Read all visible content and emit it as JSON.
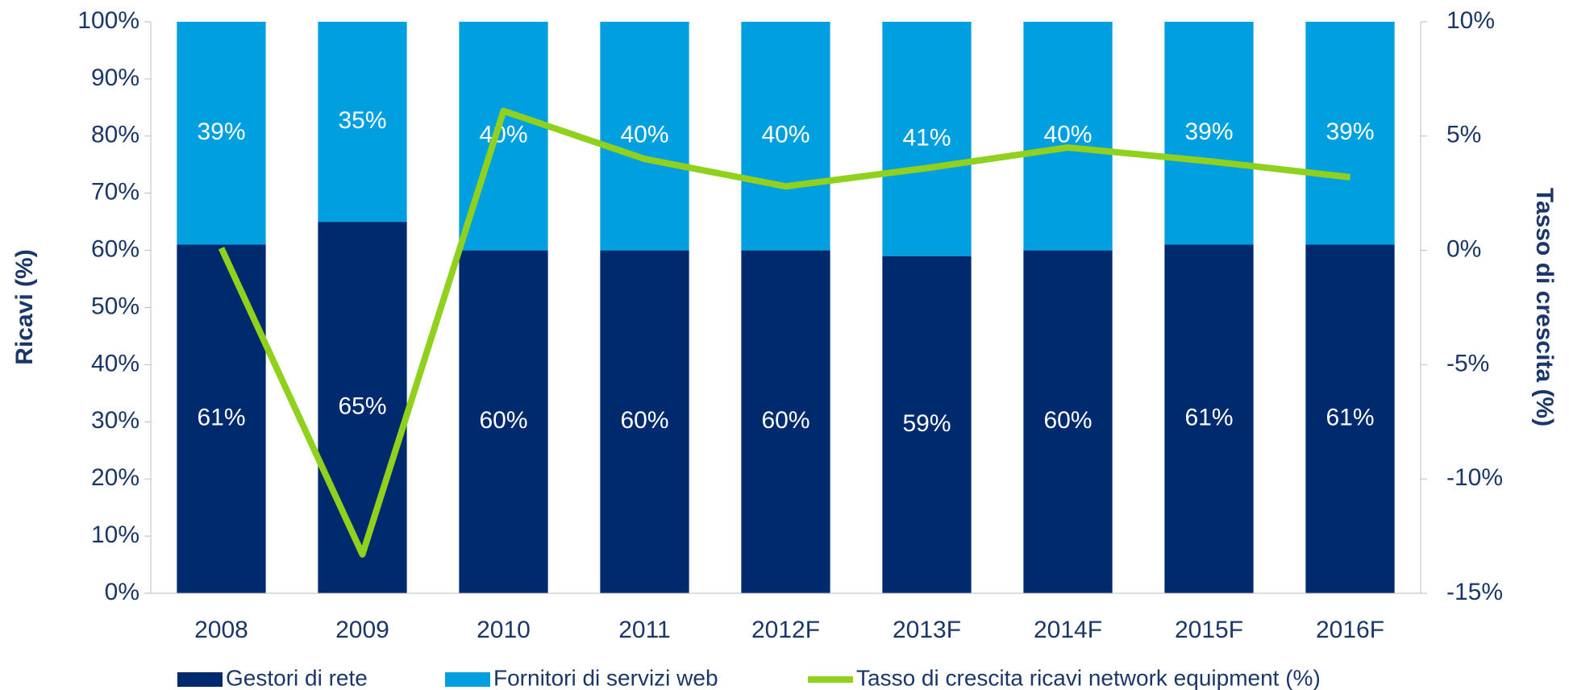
{
  "chart_data": {
    "type": "bar",
    "stacked": true,
    "categories": [
      "2008",
      "2009",
      "2010",
      "2011",
      "2012F",
      "2013F",
      "2014F",
      "2015F",
      "2016F"
    ],
    "series": [
      {
        "name": "Gestori di rete",
        "color": "#002a6e",
        "values": [
          61,
          65,
          60,
          60,
          60,
          59,
          60,
          61,
          61
        ],
        "value_labels": [
          "61%",
          "65%",
          "60%",
          "60%",
          "60%",
          "59%",
          "60%",
          "61%",
          "61%"
        ]
      },
      {
        "name": "Fornitori di servizi web",
        "color": "#009fdf",
        "values": [
          39,
          35,
          40,
          40,
          40,
          41,
          40,
          39,
          39
        ],
        "value_labels": [
          "39%",
          "35%",
          "40%",
          "40%",
          "40%",
          "41%",
          "40%",
          "39%",
          "39%"
        ]
      },
      {
        "name": "Tasso di crescita ricavi network equipment (%)",
        "color": "#8fd11c",
        "type": "line",
        "axis": "y2",
        "values": [
          0.1,
          -13.3,
          6.1,
          4.0,
          2.8,
          3.6,
          4.5,
          3.9,
          3.2
        ]
      }
    ],
    "ylabel": "Ricavi (%)",
    "y2label": "Tasso di crescita (%)",
    "ylim": [
      0,
      100
    ],
    "yticks": [
      {
        "value": 0,
        "label": "0%"
      },
      {
        "value": 10,
        "label": "10%"
      },
      {
        "value": 20,
        "label": "20%"
      },
      {
        "value": 30,
        "label": "30%"
      },
      {
        "value": 40,
        "label": "40%"
      },
      {
        "value": 50,
        "label": "50%"
      },
      {
        "value": 60,
        "label": "60%"
      },
      {
        "value": 70,
        "label": "70%"
      },
      {
        "value": 80,
        "label": "80%"
      },
      {
        "value": 90,
        "label": "90%"
      },
      {
        "value": 100,
        "label": "100%"
      }
    ],
    "y2lim": [
      -15,
      10
    ],
    "y2ticks": [
      {
        "value": -15,
        "label": "-15%"
      },
      {
        "value": -10,
        "label": "-10%"
      },
      {
        "value": -5,
        "label": "-5%"
      },
      {
        "value": 0,
        "label": "0%"
      },
      {
        "value": 5,
        "label": "5%"
      },
      {
        "value": 10,
        "label": "10%"
      }
    ],
    "legend": "bottom"
  }
}
